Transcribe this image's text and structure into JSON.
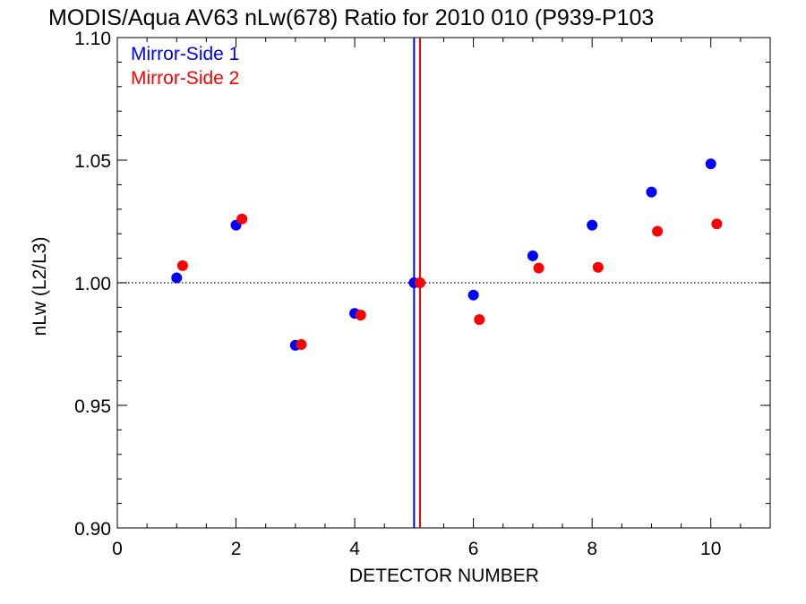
{
  "chart_data": {
    "type": "scatter",
    "title": "MODIS/Aqua AV63 nLw(678) Ratio for 2010 010 (P939-P103",
    "xlabel": "DETECTOR NUMBER",
    "ylabel": "nLw (L2/L3)",
    "xlim": [
      0,
      11
    ],
    "ylim": [
      0.9,
      1.1
    ],
    "xticks": [
      0,
      2,
      4,
      6,
      8,
      10
    ],
    "xtick_labels": [
      "0",
      "2",
      "4",
      "6",
      "8",
      "10"
    ],
    "yticks": [
      0.9,
      0.95,
      1.0,
      1.05,
      1.1
    ],
    "ytick_labels": [
      "0.90",
      "0.95",
      "1.00",
      "1.05",
      "1.10"
    ],
    "reference_line_y": 1.0,
    "legend_position": "top-left",
    "series": [
      {
        "name": "Mirror-Side 1",
        "color": "#0000ff",
        "x": [
          1,
          2,
          3,
          4,
          5,
          6,
          7,
          8,
          9,
          10
        ],
        "y": [
          1.002,
          1.0235,
          0.9745,
          0.9875,
          1.0,
          0.995,
          1.011,
          1.0235,
          1.037,
          1.0485
        ],
        "vline_x": 5.0
      },
      {
        "name": "Mirror-Side 2",
        "color": "#ff0000",
        "x": [
          1.1,
          2.1,
          3.1,
          4.1,
          5.1,
          6.1,
          7.1,
          8.1,
          9.1,
          10.1
        ],
        "y": [
          1.007,
          1.026,
          0.9748,
          0.9868,
          1.0,
          0.985,
          1.006,
          1.0063,
          1.021,
          1.024
        ],
        "vline_x": 5.1
      }
    ]
  }
}
